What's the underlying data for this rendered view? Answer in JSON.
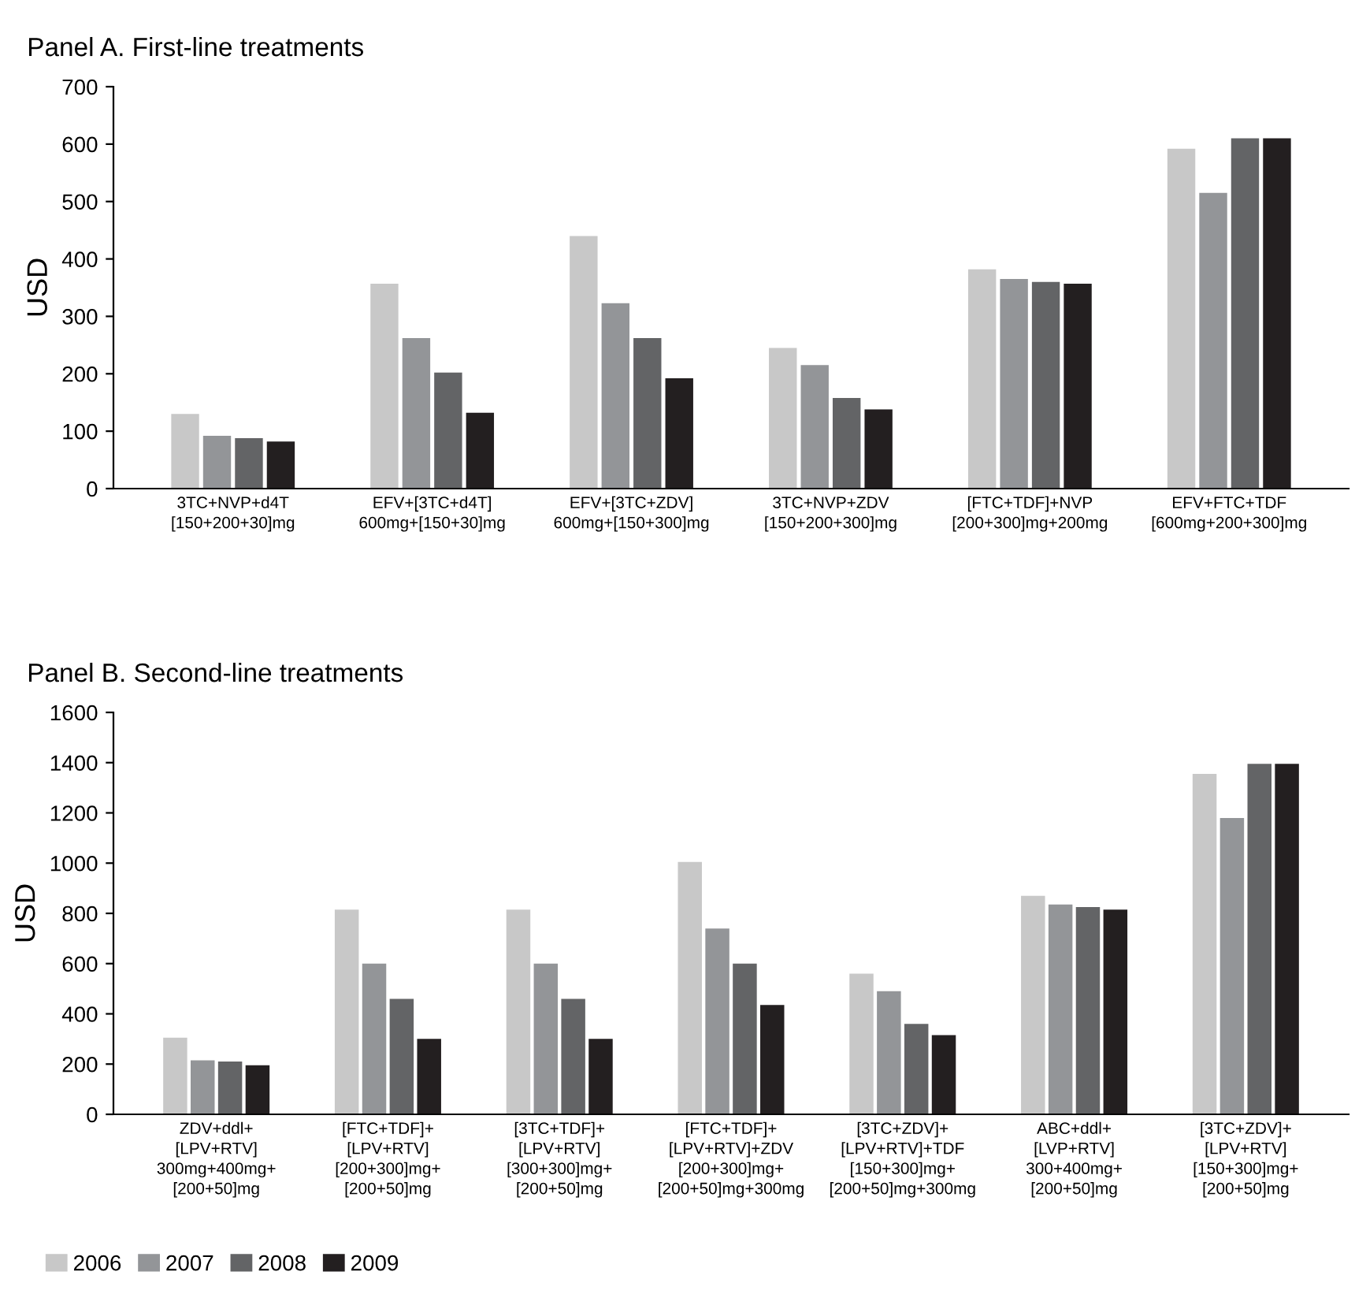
{
  "chart_data": [
    {
      "type": "bar",
      "title": "Panel A. First-line treatments",
      "ylabel": "USD",
      "categories": [
        "3TC+NVP+d4T\n[150+200+30]mg",
        "EFV+[3TC+d4T]\n600mg+[150+30]mg",
        "EFV+[3TC+ZDV]\n600mg+[150+300]mg",
        "3TC+NVP+ZDV\n[150+200+300]mg",
        "[FTC+TDF]+NVP\n[200+300]mg+200mg",
        "EFV+FTC+TDF\n[600mg+200+300]mg"
      ],
      "series": [
        {
          "color": "#c8c8c8",
          "values": [
            130,
            357,
            440,
            245,
            382,
            592
          ]
        },
        {
          "color": "#939598",
          "values": [
            92,
            262,
            323,
            215,
            365,
            515
          ]
        },
        {
          "color": "#636466",
          "values": [
            88,
            202,
            262,
            158,
            360,
            610
          ]
        },
        {
          "color": "#231f20",
          "values": [
            82,
            132,
            192,
            138,
            357,
            610
          ]
        }
      ],
      "ylim": [
        0,
        700
      ],
      "yticks": [
        0,
        100,
        200,
        300,
        400,
        500,
        600,
        700
      ],
      "grid": false
    },
    {
      "type": "bar",
      "title": "Panel B. Second-line treatments",
      "ylabel": "USD",
      "categories": [
        "ZDV+ddl+\n[LPV+RTV]\n300mg+400mg+\n[200+50]mg",
        "[FTC+TDF]+\n[LPV+RTV]\n[200+300]mg+\n[200+50]mg",
        "[3TC+TDF]+\n[LPV+RTV]\n[300+300]mg+\n[200+50]mg",
        "[FTC+TDF]+\n[LPV+RTV]+ZDV\n[200+300]mg+\n[200+50]mg+300mg",
        "[3TC+ZDV]+\n[LPV+RTV]+TDF\n[150+300]mg+\n[200+50]mg+300mg",
        "ABC+ddl+\n[LVP+RTV]\n300+400mg+\n[200+50]mg",
        "[3TC+ZDV]+\n[LPV+RTV]\n[150+300]mg+\n[200+50]mg"
      ],
      "series": [
        {
          "name": "2006",
          "color": "#c8c8c8",
          "values": [
            305,
            815,
            815,
            1005,
            560,
            870,
            1355
          ]
        },
        {
          "name": "2007",
          "color": "#939598",
          "values": [
            215,
            600,
            600,
            740,
            490,
            835,
            1180
          ]
        },
        {
          "name": "2008",
          "color": "#636466",
          "values": [
            210,
            460,
            460,
            600,
            360,
            825,
            1395
          ]
        },
        {
          "name": "2009",
          "color": "#231f20",
          "values": [
            195,
            300,
            300,
            435,
            315,
            815,
            1395
          ]
        }
      ],
      "ylim": [
        0,
        1600
      ],
      "yticks": [
        0,
        200,
        400,
        600,
        800,
        1000,
        1200,
        1400,
        1600
      ],
      "grid": false,
      "legend": "bottom"
    }
  ]
}
